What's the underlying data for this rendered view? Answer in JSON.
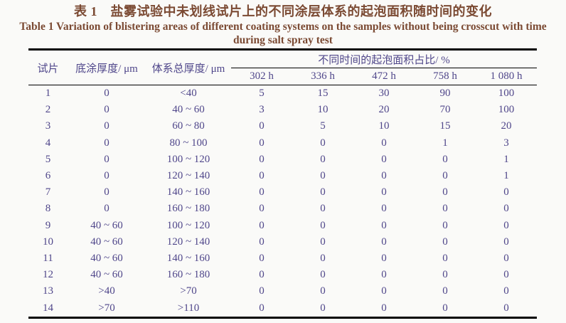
{
  "title": {
    "zh": "表 1　盐雾试验中未划线试片上的不同涂层体系的起泡面积随时间的变化",
    "en_line1": "Table 1 Variation of blistering areas of different coating systems on the samples without being crosscut with time",
    "en_line2": "during salt spray test"
  },
  "table": {
    "headers": {
      "sample": "试片",
      "primer": "底涂厚度/ μm",
      "total": "体系总厚度/ μm",
      "group": "不同时间的起泡面积占比/ %",
      "times": [
        "302 h",
        "336 h",
        "472 h",
        "758 h",
        "1 080 h"
      ]
    },
    "rows": [
      {
        "sample": "1",
        "primer": "0",
        "total": "<40",
        "values": [
          "5",
          "15",
          "30",
          "90",
          "100"
        ]
      },
      {
        "sample": "2",
        "primer": "0",
        "total": "40 ~ 60",
        "values": [
          "3",
          "10",
          "20",
          "70",
          "100"
        ]
      },
      {
        "sample": "3",
        "primer": "0",
        "total": "60 ~ 80",
        "values": [
          "0",
          "5",
          "10",
          "15",
          "20"
        ]
      },
      {
        "sample": "4",
        "primer": "0",
        "total": "80 ~ 100",
        "values": [
          "0",
          "0",
          "0",
          "1",
          "3"
        ]
      },
      {
        "sample": "5",
        "primer": "0",
        "total": "100 ~ 120",
        "values": [
          "0",
          "0",
          "0",
          "0",
          "1"
        ]
      },
      {
        "sample": "6",
        "primer": "0",
        "total": "120 ~ 140",
        "values": [
          "0",
          "0",
          "0",
          "0",
          "1"
        ]
      },
      {
        "sample": "7",
        "primer": "0",
        "total": "140 ~ 160",
        "values": [
          "0",
          "0",
          "0",
          "0",
          "0"
        ]
      },
      {
        "sample": "8",
        "primer": "0",
        "total": "160 ~ 180",
        "values": [
          "0",
          "0",
          "0",
          "0",
          "0"
        ]
      },
      {
        "sample": "9",
        "primer": "40 ~ 60",
        "total": "100 ~ 120",
        "values": [
          "0",
          "0",
          "0",
          "0",
          "0"
        ]
      },
      {
        "sample": "10",
        "primer": "40 ~ 60",
        "total": "120 ~ 140",
        "values": [
          "0",
          "0",
          "0",
          "0",
          "0"
        ]
      },
      {
        "sample": "11",
        "primer": "40 ~ 60",
        "total": "140 ~ 160",
        "values": [
          "0",
          "0",
          "0",
          "0",
          "0"
        ]
      },
      {
        "sample": "12",
        "primer": "40 ~ 60",
        "total": "160 ~ 180",
        "values": [
          "0",
          "0",
          "0",
          "0",
          "0"
        ]
      },
      {
        "sample": "13",
        "primer": ">40",
        "total": ">70",
        "values": [
          "0",
          "0",
          "0",
          "0",
          "0"
        ]
      },
      {
        "sample": "14",
        "primer": ">70",
        "total": ">110",
        "values": [
          "0",
          "0",
          "0",
          "0",
          "0"
        ]
      }
    ]
  },
  "colors": {
    "title_text": "#7b4a33",
    "table_text": "#4f468a",
    "rule": "#000000",
    "background": "#fafaf8"
  }
}
